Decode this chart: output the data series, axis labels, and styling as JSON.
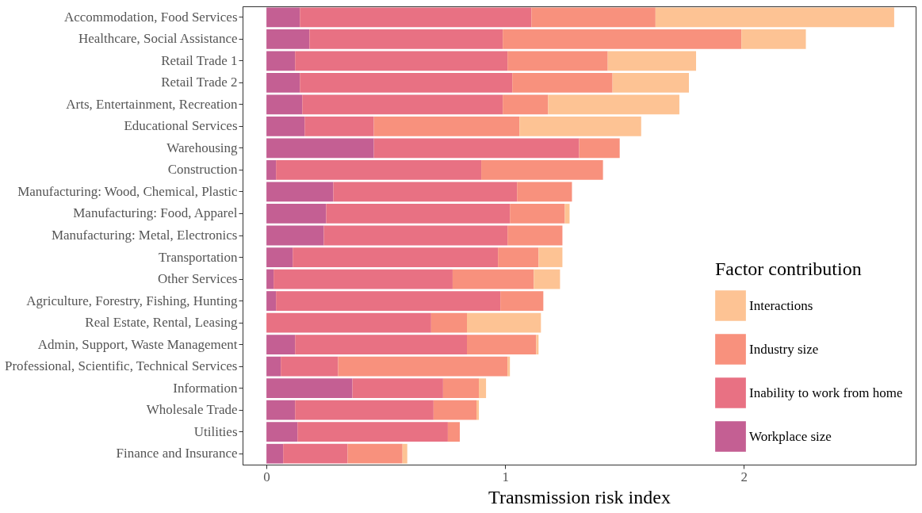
{
  "chart_data": {
    "type": "bar",
    "orientation": "horizontal",
    "stacked": true,
    "xlabel": "Transmission risk index",
    "legend_title": "Factor contribution",
    "legend": "bottom right",
    "grid": false,
    "categories": [
      "Accommodation, Food Services",
      "Healthcare, Social Assistance",
      "Retail Trade 1",
      "Retail Trade 2",
      "Arts, Entertainment, Recreation",
      "Educational Services",
      "Warehousing",
      "Construction",
      "Manufacturing: Wood, Chemical, Plastic",
      "Manufacturing: Food, Apparel",
      "Manufacturing: Metal, Electronics",
      "Transportation",
      "Other Services",
      "Agriculture, Forestry, Fishing, Hunting",
      "Real Estate, Rental, Leasing",
      "Admin, Support, Waste Management",
      "Professional, Scientific, Technical Services",
      "Information",
      "Wholesale Trade",
      "Utilities",
      "Finance and Insurance"
    ],
    "xlim": [
      -0.1,
      2.72
    ],
    "xticks": [
      0,
      1,
      2
    ],
    "series": [
      {
        "name": "Workplace size",
        "color": "#c45f93",
        "values": [
          0.14,
          0.18,
          0.12,
          0.14,
          0.15,
          0.16,
          0.45,
          0.04,
          0.28,
          0.25,
          0.24,
          0.11,
          0.03,
          0.04,
          0,
          0.12,
          0.06,
          0.36,
          0.12,
          0.13,
          0.07
        ]
      },
      {
        "name": "Inability to work from home",
        "color": "#e87183",
        "values": [
          0.97,
          0.81,
          0.89,
          0.89,
          0.84,
          0.29,
          0.86,
          0.86,
          0.77,
          0.77,
          0.77,
          0.86,
          0.75,
          0.94,
          0.69,
          0.72,
          0.24,
          0.38,
          0.58,
          0.63,
          0.27
        ]
      },
      {
        "name": "Industry size",
        "color": "#f8917d",
        "values": [
          0.52,
          1.0,
          0.42,
          0.42,
          0.19,
          0.61,
          0.17,
          0.51,
          0.23,
          0.23,
          0.23,
          0.17,
          0.34,
          0.18,
          0.15,
          0.29,
          0.71,
          0.15,
          0.18,
          0.05,
          0.23
        ]
      },
      {
        "name": "Interactions",
        "color": "#fdc394",
        "values": [
          1.0,
          0.27,
          0.37,
          0.32,
          0.55,
          0.51,
          0,
          0,
          0,
          0.02,
          0,
          0.1,
          0.11,
          0,
          0.31,
          0.01,
          0.01,
          0.03,
          0.01,
          0,
          0.02
        ]
      }
    ]
  }
}
